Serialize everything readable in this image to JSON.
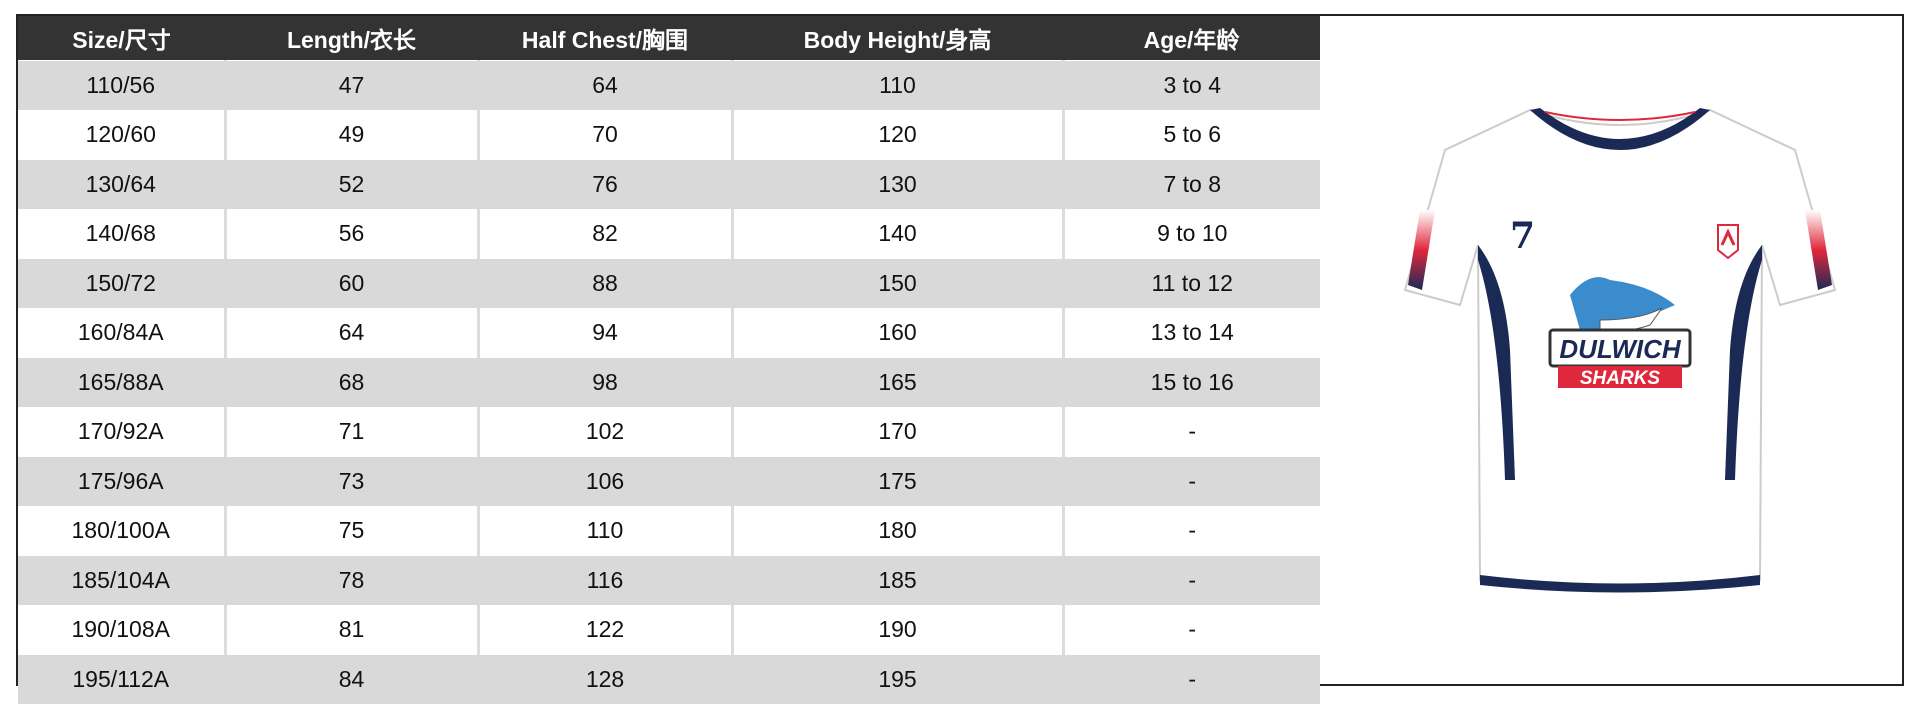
{
  "headers": [
    "Size/尺寸",
    "Length/衣长",
    "Half Chest/胸围",
    "Body Height/身高",
    "Age/年龄"
  ],
  "rows": [
    [
      "110/56",
      "47",
      "64",
      "110",
      "3 to 4"
    ],
    [
      "120/60",
      "49",
      "70",
      "120",
      "5 to 6"
    ],
    [
      "130/64",
      "52",
      "76",
      "130",
      "7 to 8"
    ],
    [
      "140/68",
      "56",
      "82",
      "140",
      "9 to 10"
    ],
    [
      "150/72",
      "60",
      "88",
      "150",
      "11 to 12"
    ],
    [
      "160/84A",
      "64",
      "94",
      "160",
      "13 to 14"
    ],
    [
      "165/88A",
      "68",
      "98",
      "165",
      "15 to 16"
    ],
    [
      "170/92A",
      "71",
      "102",
      "170",
      "-"
    ],
    [
      "175/96A",
      "73",
      "106",
      "175",
      "-"
    ],
    [
      "180/100A",
      "75",
      "110",
      "180",
      "-"
    ],
    [
      "185/104A",
      "78",
      "116",
      "185",
      "-"
    ],
    [
      "190/108A",
      "81",
      "122",
      "190",
      "-"
    ],
    [
      "195/112A",
      "84",
      "128",
      "195",
      "-"
    ]
  ],
  "shirt": {
    "number": "7",
    "logo_line1": "DULWICH",
    "logo_line2": "SHARKS",
    "colors": {
      "navy": "#1b2a55",
      "red": "#e0283c",
      "shark": "#3a8ccc"
    }
  },
  "colors": {
    "header_bg": "#333333",
    "row_alt": "#d9d9d9"
  }
}
